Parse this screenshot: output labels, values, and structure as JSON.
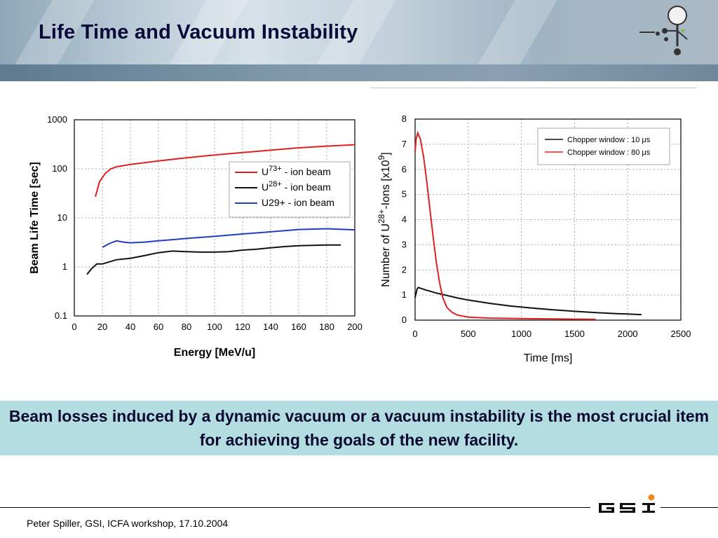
{
  "header": {
    "title": "Life Time and Vacuum Instability"
  },
  "callout": {
    "text": "Beam losses induced by a dynamic vacuum or a vacuum instability is the most crucial item for achieving the goals of the new facility."
  },
  "footer": {
    "text": "Peter Spiller, GSI, ICFA workshop, 17.10.2004",
    "logo_icon": "gsi-logo-icon"
  },
  "colors": {
    "red": "#dd2020",
    "black": "#111111",
    "blue": "#1f3fc0",
    "callout_bg": "#b3dde1",
    "title": "#0a0a3a"
  },
  "chart_data": [
    {
      "type": "line",
      "title": "",
      "xlabel": "Energy [MeV/u]",
      "ylabel": "Beam Life Time [sec]",
      "y_scale": "log",
      "xlim": [
        0,
        200
      ],
      "ylim": [
        0.1,
        1000
      ],
      "xticks": [
        "0",
        "20",
        "40",
        "60",
        "80",
        "100",
        "120",
        "140",
        "160",
        "180",
        "200"
      ],
      "yticks": [
        "1000",
        "100",
        "10",
        "1",
        "0.1"
      ],
      "grid": true,
      "legend_position": "top-right",
      "series": [
        {
          "name": "U73+ - ion beam",
          "label_base": "U",
          "label_sup": "73+",
          "label_rest": " - ion beam",
          "color": "#dd2020",
          "x": [
            15,
            18,
            22,
            26,
            30,
            40,
            60,
            80,
            100,
            120,
            140,
            160,
            180,
            200
          ],
          "y": [
            27,
            55,
            80,
            100,
            110,
            123,
            145,
            168,
            192,
            215,
            240,
            268,
            290,
            310
          ]
        },
        {
          "name": "U28+ - ion beam",
          "label_base": "U",
          "label_sup": "28+",
          "label_rest": " - ion beam",
          "color": "#111111",
          "x": [
            9,
            12,
            16,
            20,
            30,
            40,
            50,
            60,
            70,
            80,
            90,
            100,
            110,
            120,
            130,
            140,
            150,
            160,
            170,
            180,
            190
          ],
          "y": [
            0.7,
            0.9,
            1.15,
            1.15,
            1.4,
            1.5,
            1.7,
            1.95,
            2.1,
            2.05,
            2.0,
            2.0,
            2.05,
            2.2,
            2.3,
            2.45,
            2.6,
            2.7,
            2.75,
            2.8,
            2.8
          ]
        },
        {
          "name": "U29+ - ion beam",
          "label_base": "U29+",
          "label_sup": "",
          "label_rest": " - ion beam",
          "color": "#1f3fc0",
          "x": [
            20,
            25,
            30,
            35,
            40,
            50,
            60,
            80,
            100,
            120,
            140,
            160,
            180,
            200
          ],
          "y": [
            2.5,
            3.0,
            3.4,
            3.2,
            3.1,
            3.2,
            3.4,
            3.8,
            4.2,
            4.7,
            5.2,
            5.8,
            6.0,
            5.7
          ]
        }
      ]
    },
    {
      "type": "line",
      "title": "",
      "xlabel": "Time [ms]",
      "ylabel": "Number of U28+-Ions [x109]",
      "ylabel_parts": [
        "Number of U",
        "28+",
        "-Ions [x10",
        "9",
        "]"
      ],
      "xlim": [
        0,
        2500
      ],
      "ylim": [
        0,
        8
      ],
      "xticks": [
        "0",
        "500",
        "1000",
        "1500",
        "2000",
        "2500"
      ],
      "yticks": [
        "0",
        "1",
        "2",
        "3",
        "4",
        "5",
        "6",
        "7",
        "8"
      ],
      "grid": true,
      "legend_position": "top-right",
      "series": [
        {
          "name": "Chopper window : 10 μs",
          "color": "#111111",
          "x": [
            0,
            20,
            30,
            100,
            200,
            300,
            400,
            500,
            700,
            900,
            1100,
            1300,
            1500,
            1700,
            1900,
            2130
          ],
          "y": [
            0.9,
            1.25,
            1.3,
            1.2,
            1.08,
            0.98,
            0.88,
            0.8,
            0.67,
            0.56,
            0.48,
            0.41,
            0.35,
            0.3,
            0.26,
            0.22
          ]
        },
        {
          "name": "Chopper window : 80 μs",
          "color": "#dd2020",
          "x": [
            0,
            10,
            25,
            50,
            80,
            110,
            140,
            170,
            200,
            230,
            260,
            300,
            350,
            400,
            500,
            700,
            1000,
            1300,
            1500,
            1700
          ],
          "y": [
            6.7,
            7.2,
            7.45,
            7.2,
            6.5,
            5.5,
            4.4,
            3.3,
            2.3,
            1.5,
            0.9,
            0.5,
            0.3,
            0.2,
            0.12,
            0.08,
            0.06,
            0.05,
            0.04,
            0.03
          ]
        }
      ]
    }
  ]
}
